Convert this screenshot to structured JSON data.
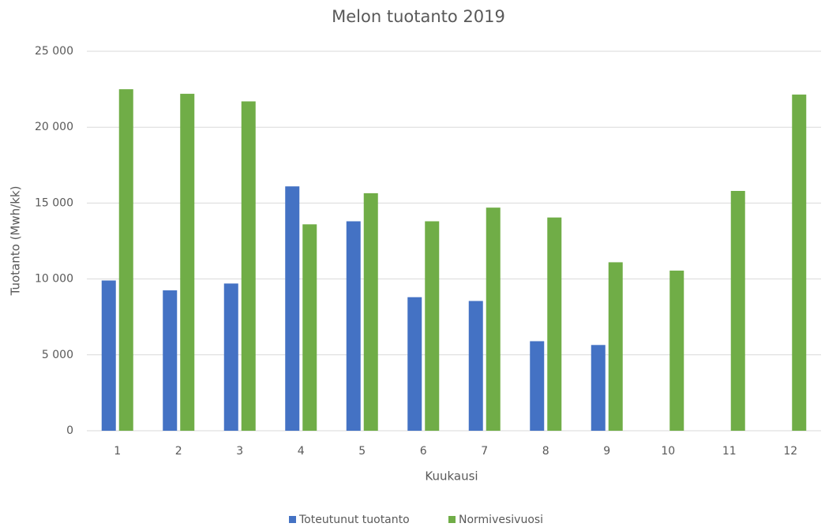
{
  "chart_data": {
    "type": "bar",
    "title": "Melon tuotanto 2019",
    "x_label": "Kuukausi",
    "y_label": "Tuotanto (Mwh/kk)",
    "categories": [
      "1",
      "2",
      "3",
      "4",
      "5",
      "6",
      "7",
      "8",
      "9",
      "10",
      "11",
      "12"
    ],
    "series": [
      {
        "name": "Toteutunut tuotanto",
        "color": "#4472c4",
        "values": [
          9900,
          9250,
          9700,
          16100,
          13800,
          8800,
          8550,
          5900,
          5650,
          null,
          null,
          null
        ]
      },
      {
        "name": "Normivesivuosi",
        "color": "#70ad47",
        "values": [
          22500,
          22200,
          21700,
          13600,
          15650,
          13800,
          14700,
          14050,
          11100,
          10550,
          15800,
          22150
        ]
      }
    ],
    "ylim": [
      0,
      25000
    ],
    "yticks": [
      0,
      {
        "value": 5000,
        "label": "5 000"
      },
      {
        "value": 10000,
        "label": "10 000"
      },
      {
        "value": 15000,
        "label": "15 000"
      },
      {
        "value": 20000,
        "label": "20 000"
      },
      {
        "value": 25000,
        "label": "25 000"
      }
    ],
    "grid": true,
    "legend": "bottom"
  }
}
